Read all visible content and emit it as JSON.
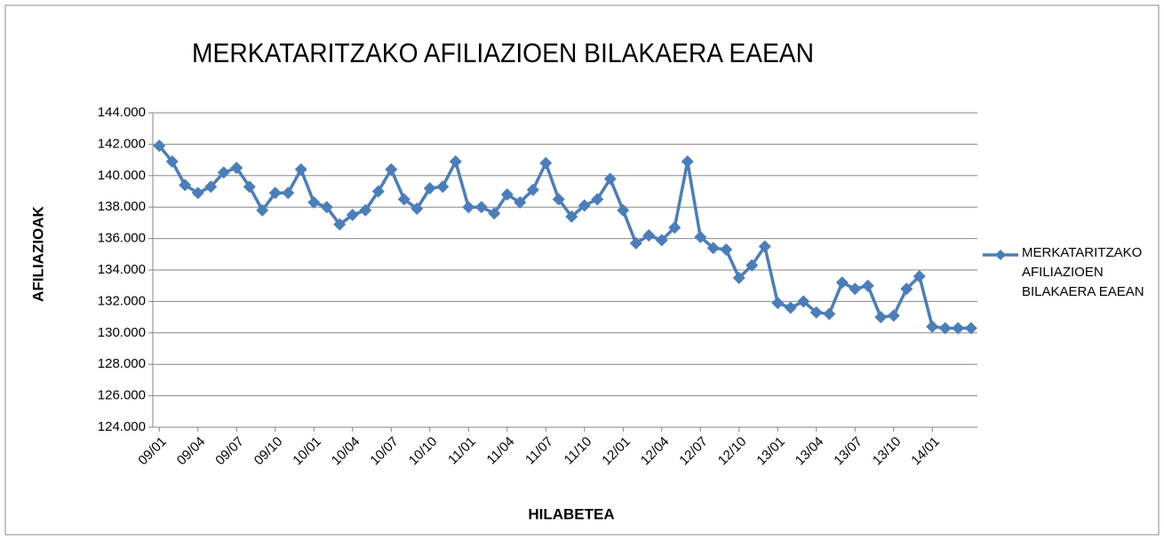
{
  "chart_data": {
    "type": "line",
    "title": "MERKATARITZAKO AFILIAZIOEN BILAKAERA EAEAN",
    "x_label": "HILABETEA",
    "y_label": "AFILIAZIOAK",
    "categories": [
      "09/01",
      null,
      null,
      "09/04",
      null,
      null,
      "09/07",
      null,
      null,
      "09/10",
      null,
      null,
      "10/01",
      null,
      null,
      "10/04",
      null,
      null,
      "10/07",
      null,
      null,
      "10/10",
      null,
      null,
      "11/01",
      null,
      null,
      "11/04",
      null,
      null,
      "11/07",
      null,
      null,
      "11/10",
      null,
      null,
      "12/01",
      null,
      null,
      "12/04",
      null,
      null,
      "12/07",
      null,
      null,
      "12/10",
      null,
      null,
      "13/01",
      null,
      null,
      "13/04",
      null,
      null,
      "13/07",
      null,
      null,
      "13/10",
      null,
      null,
      "14/01",
      null,
      null,
      null
    ],
    "series": [
      {
        "name": "MERKATARITZAKO AFILIAZIOEN BILAKAERA EAEAN",
        "color": "#4a7ebb",
        "values": [
          141900,
          140900,
          139400,
          138900,
          139300,
          140200,
          140500,
          139300,
          137800,
          138900,
          138900,
          140400,
          138300,
          138000,
          136900,
          137500,
          137800,
          139000,
          140400,
          138500,
          137900,
          139200,
          139300,
          140900,
          138000,
          138000,
          137600,
          138800,
          138300,
          139100,
          140800,
          138500,
          137400,
          138100,
          138500,
          139800,
          137800,
          135700,
          136200,
          135900,
          136700,
          140900,
          136100,
          135400,
          135300,
          133500,
          134300,
          135500,
          131900,
          131600,
          132000,
          131300,
          131200,
          133200,
          132800,
          133000,
          131000,
          131100,
          132800,
          133600,
          130400,
          130300,
          130300,
          130300
        ]
      }
    ],
    "ylim": [
      124000,
      144000
    ],
    "yticks": [
      {
        "value": 124000,
        "label": "124.000"
      },
      {
        "value": 126000,
        "label": "126.000"
      },
      {
        "value": 128000,
        "label": "128.000"
      },
      {
        "value": 130000,
        "label": "130.000"
      },
      {
        "value": 132000,
        "label": "132.000"
      },
      {
        "value": 134000,
        "label": "134.000"
      },
      {
        "value": 136000,
        "label": "136.000"
      },
      {
        "value": 138000,
        "label": "138.000"
      },
      {
        "value": 140000,
        "label": "140.000"
      },
      {
        "value": 142000,
        "label": "142.000"
      },
      {
        "value": 144000,
        "label": "144.000"
      }
    ],
    "grid": true,
    "legend": "right"
  }
}
